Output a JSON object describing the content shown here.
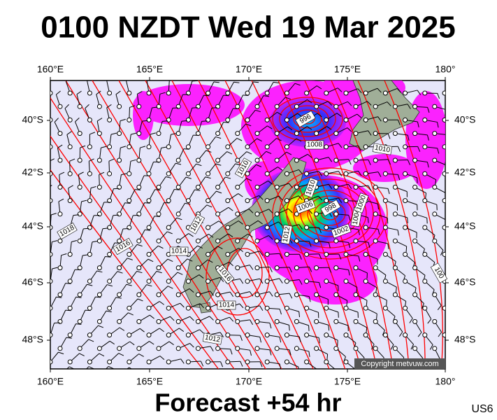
{
  "header": {
    "title": "0100 NZDT Wed 19 Mar 2025"
  },
  "axes": {
    "top": [
      "160°E",
      "165°E",
      "170°E",
      "175°E",
      "180°"
    ],
    "bottom": [
      "160°E",
      "165°E",
      "170°E",
      "175°E",
      "180°"
    ],
    "left": [
      "40°S",
      "42°S",
      "44°S",
      "46°S",
      "48°S"
    ],
    "right": [
      "40°S",
      "42°S",
      "44°S",
      "46°S",
      "48°S"
    ]
  },
  "isobar_labels": [
    "1018",
    "1016",
    "1014",
    "1012",
    "1010",
    "1012",
    "1010",
    "1006",
    "998",
    "1002",
    "1004",
    "1000",
    "1008",
    "1010",
    "996",
    "1016",
    "1014",
    "1012",
    "100"
  ],
  "copyright": "Copyright metvuw.com",
  "footer": {
    "forecast": "Forecast +54 hr",
    "code": "US6"
  }
}
